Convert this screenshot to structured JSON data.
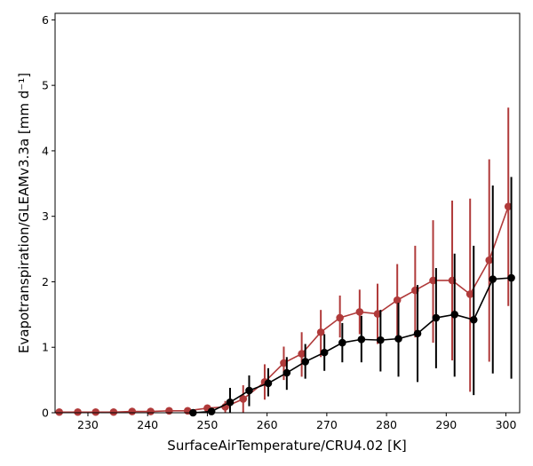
{
  "chart_data": {
    "type": "line",
    "title": "",
    "xlabel": "SurfaceAirTemperature/CRU4.02 [K]",
    "ylabel": "Evapotranspiration/GLEAMv3.3a [mm d⁻¹]",
    "xlim": [
      224.5,
      302.3
    ],
    "ylim": [
      0,
      6.1
    ],
    "xticks": [
      230,
      240,
      250,
      260,
      270,
      280,
      290,
      300
    ],
    "yticks": [
      0,
      1,
      2,
      3,
      4,
      5,
      6
    ],
    "grid": false,
    "series": [
      {
        "color": "#b03a3a",
        "x": [
          225.2,
          228.3,
          231.3,
          234.3,
          237.4,
          240.5,
          243.6,
          246.7,
          250.0,
          253.0,
          256.0,
          259.6,
          262.8,
          265.8,
          269.0,
          272.2,
          275.5,
          278.5,
          281.8,
          284.8,
          287.8,
          291.0,
          294.0,
          297.2,
          300.4
        ],
        "y": [
          0.01,
          0.01,
          0.01,
          0.01,
          0.02,
          0.02,
          0.03,
          0.03,
          0.07,
          0.09,
          0.21,
          0.47,
          0.76,
          0.9,
          1.23,
          1.45,
          1.54,
          1.51,
          1.72,
          1.87,
          2.02,
          2.02,
          1.81,
          2.33,
          3.15
        ],
        "err_low": [
          0.0,
          0.0,
          0.0,
          0.0,
          0.0,
          0.0,
          0.0,
          0.0,
          0.0,
          0.0,
          0.0,
          0.2,
          0.5,
          0.55,
          0.85,
          1.15,
          1.2,
          1.05,
          1.15,
          1.15,
          1.07,
          0.8,
          0.32,
          0.78,
          1.63
        ],
        "err_high": [
          0.02,
          0.02,
          0.02,
          0.02,
          0.03,
          0.03,
          0.04,
          0.05,
          0.12,
          0.18,
          0.42,
          0.74,
          1.01,
          1.23,
          1.57,
          1.79,
          1.88,
          1.97,
          2.27,
          2.55,
          2.94,
          3.24,
          3.27,
          3.87,
          4.66
        ]
      },
      {
        "color": "#000000",
        "x": [
          247.6,
          250.7,
          253.8,
          257.0,
          260.2,
          263.3,
          266.4,
          269.6,
          272.6,
          275.8,
          279.0,
          282.0,
          285.2,
          288.3,
          291.4,
          294.6,
          297.8,
          300.9
        ],
        "y": [
          0.0,
          0.02,
          0.16,
          0.34,
          0.45,
          0.61,
          0.78,
          0.92,
          1.07,
          1.12,
          1.11,
          1.13,
          1.21,
          1.45,
          1.5,
          1.42,
          2.04,
          2.06
        ],
        "err_low": [
          0.0,
          0.0,
          0.0,
          0.1,
          0.25,
          0.35,
          0.52,
          0.64,
          0.77,
          0.77,
          0.63,
          0.55,
          0.47,
          0.68,
          0.55,
          0.27,
          0.6,
          0.52
        ],
        "err_high": [
          0.01,
          0.07,
          0.38,
          0.57,
          0.68,
          0.85,
          1.05,
          1.2,
          1.37,
          1.48,
          1.57,
          1.68,
          1.95,
          2.21,
          2.43,
          2.55,
          3.47,
          3.6
        ]
      }
    ]
  }
}
